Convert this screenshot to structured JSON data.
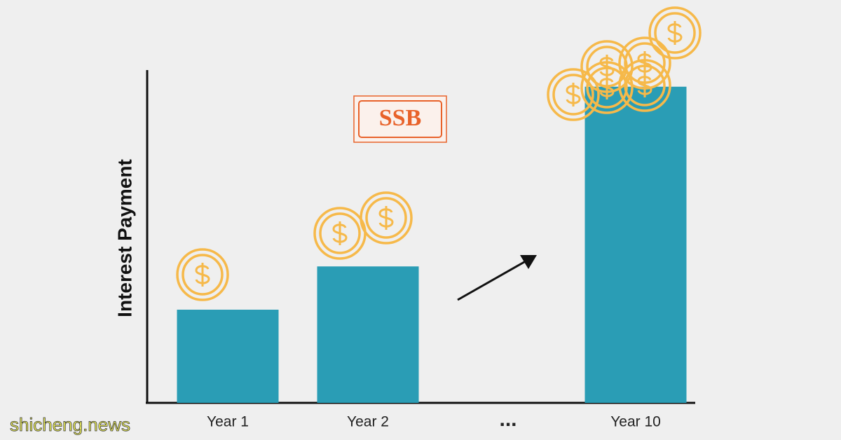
{
  "chart_data": {
    "type": "bar",
    "ylabel": "Interest Payment",
    "annotation": "SSB",
    "watermark": "shicheng.news",
    "categories": [
      "Year 1",
      "Year 2",
      "...",
      "Year 10"
    ],
    "values": [
      28,
      41,
      null,
      95
    ],
    "color": "#2a9db5",
    "ylim": [
      0,
      100
    ]
  }
}
